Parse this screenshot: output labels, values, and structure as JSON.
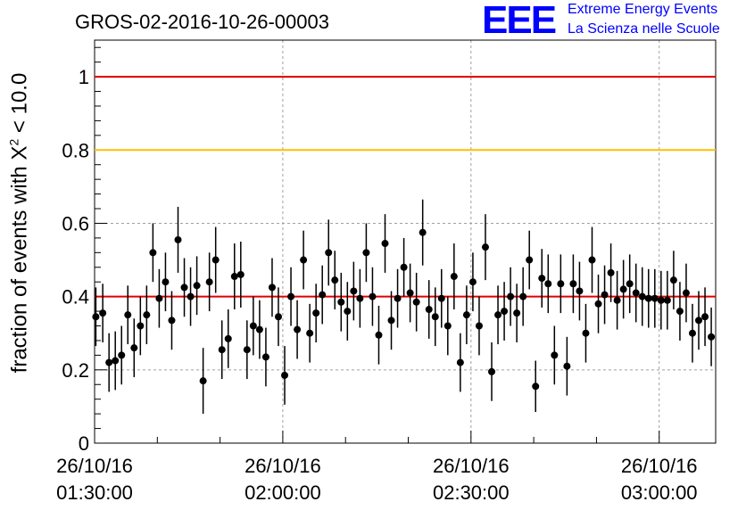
{
  "title": "GROS-02-2016-10-26-00003",
  "logo": {
    "mark": "EEE",
    "line1": "Extreme Energy Events",
    "line2": "La Scienza nelle Scuole"
  },
  "colors": {
    "points": "#000000",
    "red_line": "#e00000",
    "orange_line": "#ffc000",
    "grid": "#a0a0a0",
    "logo": "#0000ff"
  },
  "chart_data": {
    "type": "scatter",
    "title": "GROS-02-2016-10-26-00003",
    "ylabel_prefix": "fraction of events with X",
    "ylabel_sup": "2",
    "ylabel_suffix": " < 10.0",
    "xlabel": "",
    "x_unit": "minutes since 26/10/16 01:30:00",
    "xlim": [
      0,
      99
    ],
    "ylim": [
      0,
      1.1
    ],
    "y_ticks": [
      0,
      0.2,
      0.4,
      0.6,
      0.8,
      1
    ],
    "y_tick_labels": [
      "0",
      "0.2",
      "0.4",
      "0.6",
      "0.8",
      "1"
    ],
    "x_ticks": [
      0,
      30,
      60,
      90
    ],
    "x_tick_labels": [
      [
        "26/10/16",
        "01:30:00"
      ],
      [
        "26/10/16",
        "02:00:00"
      ],
      [
        "26/10/16",
        "02:30:00"
      ],
      [
        "26/10/16",
        "03:00:00"
      ]
    ],
    "grid": true,
    "reference_lines": [
      {
        "y": 1.0,
        "color": "#e00000"
      },
      {
        "y": 0.8,
        "color": "#ffc000"
      },
      {
        "y": 0.4,
        "color": "#e00000"
      }
    ],
    "series": [
      {
        "x": [
          0.2,
          1.3,
          2.3,
          3.3,
          4.3,
          5.3,
          6.3,
          7.3,
          8.3,
          9.3,
          10.3,
          11.3,
          12.3,
          13.3,
          14.3,
          15.3,
          16.3,
          17.3,
          18.3,
          19.3,
          20.3,
          21.3,
          22.3,
          23.3,
          24.3,
          25.3,
          26.3,
          27.3,
          28.3,
          29.3,
          30.3,
          31.3,
          32.3,
          33.3,
          34.3,
          35.3,
          36.3,
          37.3,
          38.3,
          39.3,
          40.3,
          41.3,
          42.3,
          43.3,
          44.3,
          45.3,
          46.3,
          47.3,
          48.3,
          49.3,
          50.3,
          51.3,
          52.3,
          53.3,
          54.3,
          55.3,
          56.3,
          57.3,
          58.3,
          59.3,
          60.3,
          61.3,
          62.3,
          63.3,
          64.3,
          65.3,
          66.3,
          67.3,
          68.3,
          69.3,
          70.3,
          71.3,
          72.3,
          73.3,
          74.3,
          75.3,
          76.3,
          77.3,
          78.3,
          79.3,
          80.3,
          81.3,
          82.3,
          83.3,
          84.3,
          85.3,
          86.3,
          87.3,
          88.3,
          89.3,
          90.3,
          91.3,
          92.3,
          93.3,
          94.3,
          95.3,
          96.3,
          97.3,
          98.3
        ],
        "y": [
          0.345,
          0.355,
          0.22,
          0.225,
          0.24,
          0.35,
          0.26,
          0.32,
          0.35,
          0.52,
          0.395,
          0.44,
          0.335,
          0.555,
          0.425,
          0.4,
          0.43,
          0.17,
          0.44,
          0.5,
          0.255,
          0.285,
          0.455,
          0.46,
          0.255,
          0.32,
          0.31,
          0.235,
          0.425,
          0.345,
          0.185,
          0.4,
          0.31,
          0.5,
          0.3,
          0.355,
          0.405,
          0.52,
          0.445,
          0.385,
          0.36,
          0.415,
          0.395,
          0.52,
          0.4,
          0.295,
          0.545,
          0.335,
          0.395,
          0.48,
          0.41,
          0.385,
          0.575,
          0.365,
          0.345,
          0.395,
          0.32,
          0.455,
          0.22,
          0.35,
          0.44,
          0.32,
          0.535,
          0.195,
          0.35,
          0.36,
          0.4,
          0.355,
          0.4,
          0.5,
          0.155,
          0.45,
          0.435,
          0.24,
          0.435,
          0.21,
          0.435,
          0.415,
          0.3,
          0.5,
          0.38,
          0.405,
          0.465,
          0.39,
          0.42,
          0.435,
          0.41,
          0.4,
          0.395,
          0.395,
          0.39,
          0.39,
          0.445,
          0.36,
          0.41,
          0.3,
          0.335,
          0.345,
          0.29
        ],
        "err": [
          0.08,
          0.08,
          0.08,
          0.08,
          0.08,
          0.08,
          0.08,
          0.08,
          0.08,
          0.08,
          0.08,
          0.08,
          0.08,
          0.09,
          0.08,
          0.08,
          0.08,
          0.09,
          0.08,
          0.09,
          0.08,
          0.08,
          0.09,
          0.09,
          0.08,
          0.08,
          0.08,
          0.08,
          0.08,
          0.08,
          0.08,
          0.08,
          0.08,
          0.08,
          0.08,
          0.08,
          0.08,
          0.09,
          0.08,
          0.08,
          0.08,
          0.08,
          0.08,
          0.08,
          0.08,
          0.08,
          0.08,
          0.08,
          0.08,
          0.08,
          0.08,
          0.08,
          0.09,
          0.08,
          0.08,
          0.08,
          0.08,
          0.09,
          0.08,
          0.08,
          0.08,
          0.08,
          0.09,
          0.08,
          0.08,
          0.08,
          0.08,
          0.08,
          0.08,
          0.08,
          0.07,
          0.08,
          0.08,
          0.08,
          0.08,
          0.08,
          0.08,
          0.08,
          0.08,
          0.09,
          0.08,
          0.08,
          0.08,
          0.08,
          0.08,
          0.08,
          0.08,
          0.08,
          0.08,
          0.08,
          0.08,
          0.08,
          0.08,
          0.08,
          0.08,
          0.08,
          0.08,
          0.08,
          0.08
        ]
      }
    ]
  }
}
